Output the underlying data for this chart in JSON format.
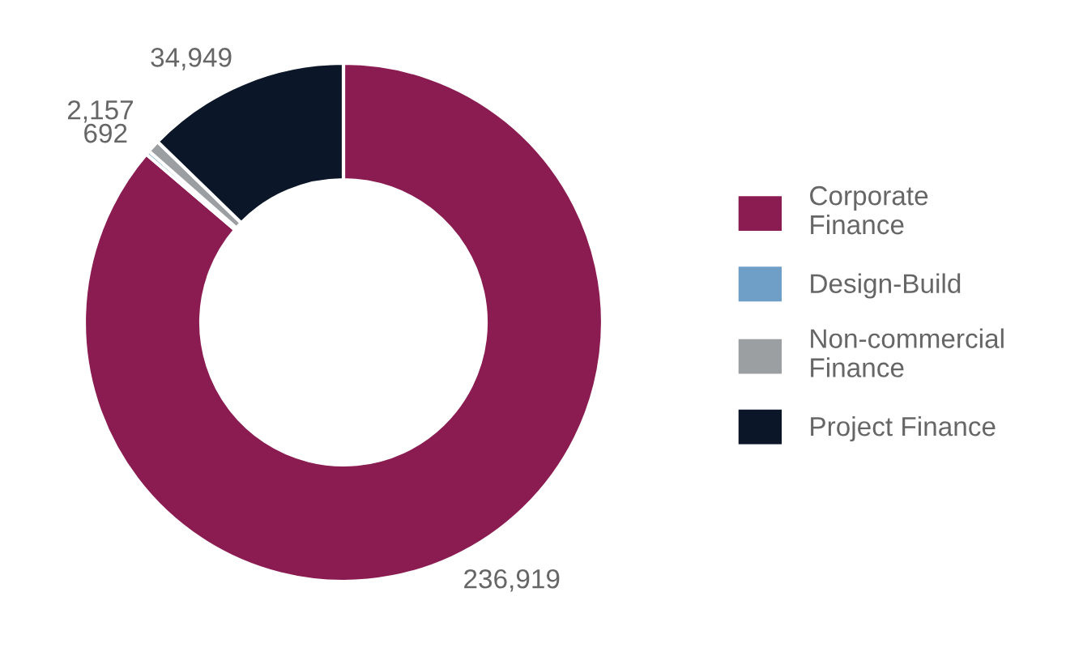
{
  "chart_data": {
    "type": "donut",
    "categories": [
      "Corporate Finance",
      "Design-Build",
      "Non-commercial Finance",
      "Project Finance"
    ],
    "values": [
      236919,
      692,
      2157,
      34949
    ],
    "value_labels": [
      "236,919",
      "692",
      "2,157",
      "34,949"
    ],
    "colors": [
      "#8b1c52",
      "#6f9fc6",
      "#9c9fa2",
      "#0b1628"
    ],
    "legend": "right"
  }
}
